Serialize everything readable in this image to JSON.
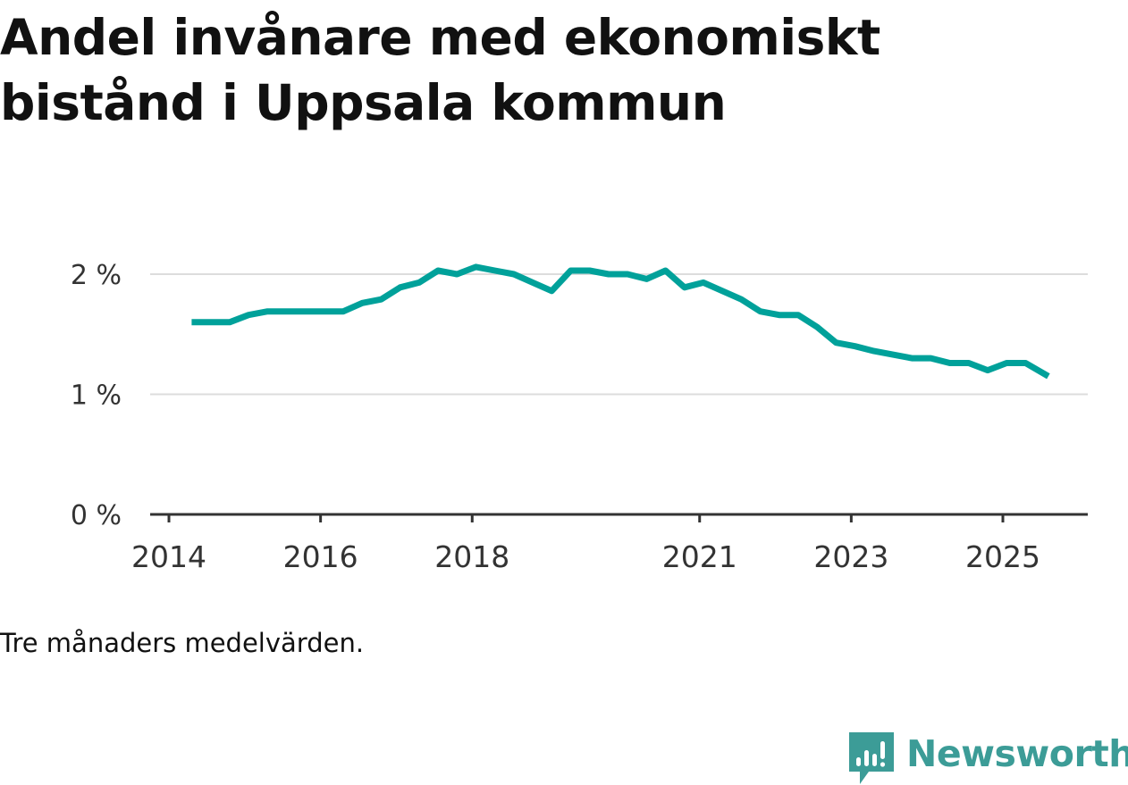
{
  "title": "Andel invånare med ekonomiskt bistånd i Uppsala kommun",
  "caption": "Tre månaders medelvärden.",
  "brand": {
    "name": "Newsworthy",
    "color": "#3c9c97"
  },
  "colors": {
    "line": "#00a19a",
    "grid": "#dcdcdc",
    "axis": "#333333",
    "text": "#111111"
  },
  "chart_data": {
    "type": "line",
    "title": "Andel invånare med ekonomiskt bistånd i Uppsala kommun",
    "xlabel": "",
    "ylabel": "",
    "unit": "%",
    "xlim": [
      2014,
      2025.6
    ],
    "ylim": [
      0,
      2.0
    ],
    "y_ticks": [
      0,
      1,
      2
    ],
    "y_tick_labels": [
      "0 %",
      "1 %",
      "2 %"
    ],
    "x_ticks": [
      2014,
      2016,
      2018,
      2021,
      2023,
      2025
    ],
    "x_tick_labels": [
      "2014",
      "2016",
      "2018",
      "2021",
      "2023",
      "2025"
    ],
    "grid": true,
    "series": [
      {
        "name": "Andel invånare med ekonomiskt bistånd",
        "x": [
          2014.3,
          2014.55,
          2014.8,
          2015.05,
          2015.3,
          2015.55,
          2015.8,
          2016.05,
          2016.3,
          2016.55,
          2016.8,
          2017.05,
          2017.3,
          2017.55,
          2017.8,
          2018.05,
          2018.3,
          2018.55,
          2018.8,
          2019.05,
          2019.3,
          2019.55,
          2019.8,
          2020.05,
          2020.3,
          2020.55,
          2020.8,
          2021.05,
          2021.3,
          2021.55,
          2021.8,
          2022.05,
          2022.3,
          2022.55,
          2022.8,
          2023.05,
          2023.3,
          2023.55,
          2023.8,
          2024.05,
          2024.3,
          2024.55,
          2024.8,
          2025.05,
          2025.3,
          2025.6
        ],
        "values": [
          1.6,
          1.6,
          1.6,
          1.66,
          1.69,
          1.69,
          1.69,
          1.69,
          1.69,
          1.76,
          1.79,
          1.89,
          1.93,
          2.03,
          2.0,
          2.06,
          2.03,
          2.0,
          1.93,
          1.86,
          2.03,
          2.03,
          2.0,
          2.0,
          1.96,
          2.03,
          1.89,
          1.93,
          1.86,
          1.79,
          1.69,
          1.66,
          1.66,
          1.56,
          1.43,
          1.4,
          1.36,
          1.33,
          1.3,
          1.3,
          1.26,
          1.26,
          1.2,
          1.26,
          1.26,
          1.15
        ]
      }
    ]
  }
}
